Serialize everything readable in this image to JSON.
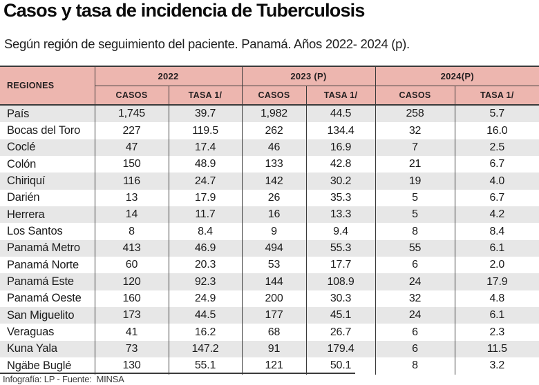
{
  "title": "Casos y tasa de incidencia de Tuberculosis",
  "subtitle": "Según región de seguimiento del paciente. Panamá. Años 2022- 2024 (p).",
  "footer": "Infografía: LP - Fuente:  MINSA",
  "colors": {
    "header_bg": "#edb6af",
    "row_stripe": "#e7e7e7",
    "grid_line": "#3a3a3a"
  },
  "chart_data": {
    "type": "table",
    "title": "Casos y tasa de incidencia de Tuberculosis",
    "subtitle": "Según región de seguimiento del paciente. Panamá. Años 2022- 2024 (p).",
    "region_header": "REGIONES",
    "year_groups": [
      {
        "label": "2022"
      },
      {
        "label": "2023 (P)"
      },
      {
        "label": "2024(P)"
      }
    ],
    "sub_headers": [
      "CASOS",
      "TASA 1/"
    ],
    "rows": [
      {
        "region": "País",
        "values": [
          "1,745",
          "39.7",
          "1,982",
          "44.5",
          "258",
          "5.7"
        ]
      },
      {
        "region": "Bocas del Toro",
        "values": [
          "227",
          "119.5",
          "262",
          "134.4",
          "32",
          "16.0"
        ]
      },
      {
        "region": "Coclé",
        "values": [
          "47",
          "17.4",
          "46",
          "16.9",
          "7",
          "2.5"
        ]
      },
      {
        "region": "Colón",
        "values": [
          "150",
          "48.9",
          "133",
          "42.8",
          "21",
          "6.7"
        ]
      },
      {
        "region": "Chiriquí",
        "values": [
          "116",
          "24.7",
          "142",
          "30.2",
          "19",
          "4.0"
        ]
      },
      {
        "region": "Darién",
        "values": [
          "13",
          "17.9",
          "26",
          "35.3",
          "5",
          "6.7"
        ]
      },
      {
        "region": "Herrera",
        "values": [
          "14",
          "11.7",
          "16",
          "13.3",
          "5",
          "4.2"
        ]
      },
      {
        "region": "Los Santos",
        "values": [
          "8",
          "8.4",
          "9",
          "9.4",
          "8",
          "8.4"
        ]
      },
      {
        "region": "Panamá Metro",
        "values": [
          "413",
          "46.9",
          "494",
          "55.3",
          "55",
          "6.1"
        ]
      },
      {
        "region": "Panamá Norte",
        "values": [
          "60",
          "20.3",
          "53",
          "17.7",
          "6",
          "2.0"
        ]
      },
      {
        "region": "Panamá Este",
        "values": [
          "120",
          "92.3",
          "144",
          "108.9",
          "24",
          "17.9"
        ]
      },
      {
        "region": "Panamá Oeste",
        "values": [
          "160",
          "24.9",
          "200",
          "30.3",
          "32",
          "4.8"
        ]
      },
      {
        "region": "San Miguelito",
        "values": [
          "173",
          "44.5",
          "177",
          "45.1",
          "24",
          "6.1"
        ]
      },
      {
        "region": "Veraguas",
        "values": [
          "41",
          "16.2",
          "68",
          "26.7",
          "6",
          "2.3"
        ]
      },
      {
        "region": "Kuna Yala",
        "values": [
          "73",
          "147.2",
          "91",
          "179.4",
          "6",
          "11.5"
        ]
      },
      {
        "region": "Ngäbe Buglé",
        "values": [
          "130",
          "55.1",
          "121",
          "50.1",
          "8",
          "3.2"
        ]
      }
    ]
  }
}
